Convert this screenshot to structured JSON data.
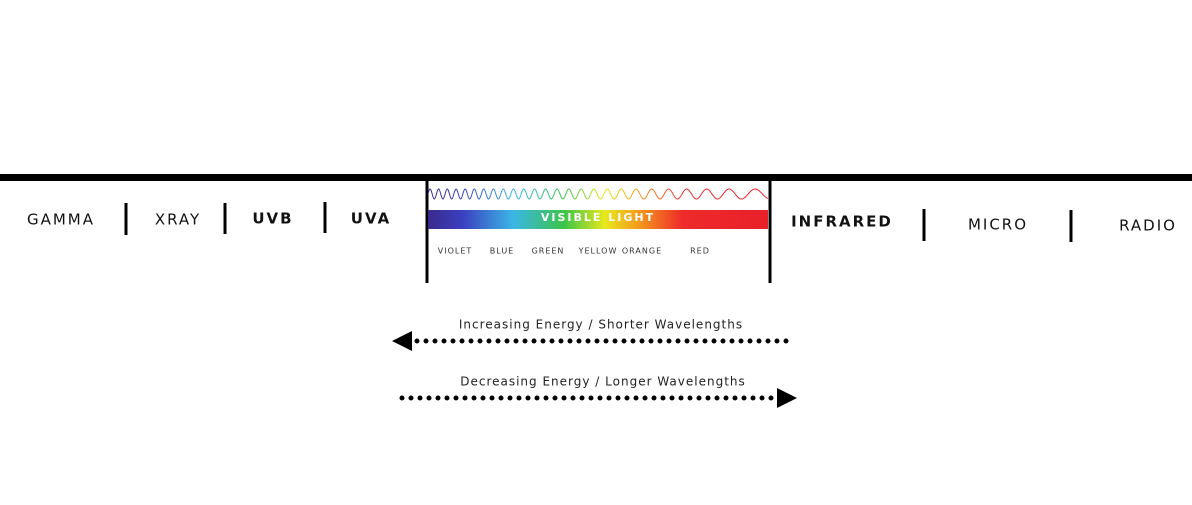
{
  "bands": [
    "GAMMA",
    "XRAY",
    "UVB",
    "UVA",
    "INFRARED",
    "MICRO",
    "RADIO"
  ],
  "visible": {
    "label": "VISIBLE LIGHT",
    "colors": [
      "VIOLET",
      "BLUE",
      "GREEN",
      "YELLOW",
      "ORANGE",
      "RED"
    ]
  },
  "arrows": [
    "Increasing Energy / Shorter Wavelengths",
    "Decreasing Energy / Longer Wavelengths"
  ]
}
